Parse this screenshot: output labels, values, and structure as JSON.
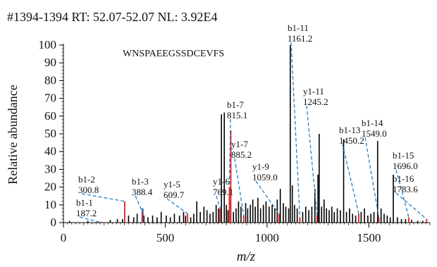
{
  "chart_data": {
    "type": "bar",
    "header": "#1394-1394 RT: 52.07-52.07 NL: 3.92E4",
    "peptide": "WNSPAEEGSSDCEVFS",
    "xlabel": "m/z",
    "ylabel": "Relative abundance",
    "xlim": [
      0,
      1800
    ],
    "ylim": [
      0,
      100
    ],
    "xticks": [
      0,
      500,
      1000,
      1500
    ],
    "yticks": [
      0,
      10,
      20,
      30,
      40,
      50,
      60,
      70,
      80,
      90,
      100
    ],
    "grid": false,
    "colors": {
      "matched": "#e02020",
      "unmatched": "#000000",
      "annotation": "#2a7fc4",
      "shoulder": "#2a7fc4"
    },
    "labels": [
      {
        "ion": "b1-1",
        "mz": "187.2",
        "x": 187.2,
        "y": 0
      },
      {
        "ion": "b1-2",
        "mz": "300.8",
        "x": 300.8,
        "y": 12
      },
      {
        "ion": "b1-3",
        "mz": "388.4",
        "x": 388.4,
        "y": 6
      },
      {
        "ion": "y1-5",
        "mz": "609.7",
        "x": 609.7,
        "y": 5
      },
      {
        "ion": "y1-6",
        "mz": "769.1",
        "x": 769.1,
        "y": 8
      },
      {
        "ion": "b1-7",
        "mz": "815.1",
        "x": 815.1,
        "y": 20
      },
      {
        "ion": "y1-7",
        "mz": "885.2",
        "x": 885.2,
        "y": 4
      },
      {
        "ion": "y1-9",
        "mz": "1059.0",
        "x": 1059.0,
        "y": 5
      },
      {
        "ion": "b1-11",
        "mz": "1161.2",
        "x": 1161.2,
        "y": 3
      },
      {
        "ion": "y1-11",
        "mz": "1245.2",
        "x": 1245.2,
        "y": 4
      },
      {
        "ion": "b1-13",
        "mz": "1450.2",
        "x": 1450.2,
        "y": 5
      },
      {
        "ion": "b1-14",
        "mz": "1549.0",
        "x": 1549.0,
        "y": 3
      },
      {
        "ion": "b1-15",
        "mz": "1696.0",
        "x": 1696.0,
        "y": 3
      },
      {
        "ion": "b1-16",
        "mz": "1783.6",
        "x": 1783.6,
        "y": 2
      }
    ],
    "peaks_matched": [
      {
        "x": 187.2,
        "y": 0.5
      },
      {
        "x": 300.8,
        "y": 12
      },
      {
        "x": 388.4,
        "y": 6
      },
      {
        "x": 609.7,
        "y": 5
      },
      {
        "x": 769.1,
        "y": 8
      },
      {
        "x": 815.1,
        "y": 20
      },
      {
        "x": 822,
        "y": 52
      },
      {
        "x": 885.2,
        "y": 4
      },
      {
        "x": 1059.0,
        "y": 5
      },
      {
        "x": 1161.2,
        "y": 3
      },
      {
        "x": 1245.2,
        "y": 4
      },
      {
        "x": 1450.2,
        "y": 5
      },
      {
        "x": 1549.0,
        "y": 3
      },
      {
        "x": 1696.0,
        "y": 3
      },
      {
        "x": 1783.6,
        "y": 2
      }
    ],
    "peaks_unmatched": [
      {
        "x": 30,
        "y": 1
      },
      {
        "x": 120,
        "y": 1
      },
      {
        "x": 230,
        "y": 1.5
      },
      {
        "x": 265,
        "y": 2
      },
      {
        "x": 290,
        "y": 2
      },
      {
        "x": 320,
        "y": 4
      },
      {
        "x": 345,
        "y": 3
      },
      {
        "x": 362,
        "y": 5
      },
      {
        "x": 395,
        "y": 4
      },
      {
        "x": 415,
        "y": 3
      },
      {
        "x": 438,
        "y": 4
      },
      {
        "x": 460,
        "y": 3
      },
      {
        "x": 480,
        "y": 6
      },
      {
        "x": 505,
        "y": 4
      },
      {
        "x": 525,
        "y": 3
      },
      {
        "x": 545,
        "y": 5
      },
      {
        "x": 570,
        "y": 4
      },
      {
        "x": 590,
        "y": 6
      },
      {
        "x": 600,
        "y": 4
      },
      {
        "x": 625,
        "y": 3
      },
      {
        "x": 640,
        "y": 5
      },
      {
        "x": 655,
        "y": 12
      },
      {
        "x": 672,
        "y": 6
      },
      {
        "x": 690,
        "y": 9
      },
      {
        "x": 705,
        "y": 7
      },
      {
        "x": 720,
        "y": 5
      },
      {
        "x": 735,
        "y": 6
      },
      {
        "x": 750,
        "y": 10
      },
      {
        "x": 762,
        "y": 8
      },
      {
        "x": 776,
        "y": 61
      },
      {
        "x": 790,
        "y": 62
      },
      {
        "x": 800,
        "y": 10
      },
      {
        "x": 808,
        "y": 7
      },
      {
        "x": 835,
        "y": 6
      },
      {
        "x": 848,
        "y": 8
      },
      {
        "x": 860,
        "y": 12
      },
      {
        "x": 872,
        "y": 9
      },
      {
        "x": 895,
        "y": 11
      },
      {
        "x": 905,
        "y": 8
      },
      {
        "x": 918,
        "y": 10
      },
      {
        "x": 930,
        "y": 13
      },
      {
        "x": 942,
        "y": 9
      },
      {
        "x": 955,
        "y": 14
      },
      {
        "x": 968,
        "y": 8
      },
      {
        "x": 982,
        "y": 10
      },
      {
        "x": 995,
        "y": 12
      },
      {
        "x": 1010,
        "y": 9
      },
      {
        "x": 1025,
        "y": 10
      },
      {
        "x": 1038,
        "y": 8
      },
      {
        "x": 1050,
        "y": 13
      },
      {
        "x": 1065,
        "y": 19
      },
      {
        "x": 1080,
        "y": 11
      },
      {
        "x": 1092,
        "y": 9
      },
      {
        "x": 1106,
        "y": 8
      },
      {
        "x": 1114,
        "y": 100
      },
      {
        "x": 1124,
        "y": 21
      },
      {
        "x": 1135,
        "y": 10
      },
      {
        "x": 1148,
        "y": 8
      },
      {
        "x": 1175,
        "y": 6
      },
      {
        "x": 1190,
        "y": 9
      },
      {
        "x": 1205,
        "y": 7
      },
      {
        "x": 1220,
        "y": 9
      },
      {
        "x": 1235,
        "y": 19
      },
      {
        "x": 1250,
        "y": 27
      },
      {
        "x": 1256,
        "y": 50
      },
      {
        "x": 1268,
        "y": 9
      },
      {
        "x": 1280,
        "y": 13
      },
      {
        "x": 1292,
        "y": 8
      },
      {
        "x": 1305,
        "y": 7
      },
      {
        "x": 1318,
        "y": 9
      },
      {
        "x": 1330,
        "y": 6
      },
      {
        "x": 1345,
        "y": 8
      },
      {
        "x": 1360,
        "y": 7
      },
      {
        "x": 1376,
        "y": 47
      },
      {
        "x": 1390,
        "y": 6
      },
      {
        "x": 1405,
        "y": 8
      },
      {
        "x": 1420,
        "y": 5
      },
      {
        "x": 1435,
        "y": 4
      },
      {
        "x": 1462,
        "y": 6
      },
      {
        "x": 1478,
        "y": 8
      },
      {
        "x": 1495,
        "y": 4
      },
      {
        "x": 1510,
        "y": 5
      },
      {
        "x": 1525,
        "y": 6
      },
      {
        "x": 1543,
        "y": 46
      },
      {
        "x": 1560,
        "y": 8
      },
      {
        "x": 1575,
        "y": 5
      },
      {
        "x": 1590,
        "y": 4
      },
      {
        "x": 1605,
        "y": 3
      },
      {
        "x": 1620,
        "y": 27
      },
      {
        "x": 1640,
        "y": 3
      },
      {
        "x": 1660,
        "y": 2
      },
      {
        "x": 1680,
        "y": 2
      },
      {
        "x": 1710,
        "y": 1.5
      },
      {
        "x": 1740,
        "y": 1
      },
      {
        "x": 1765,
        "y": 1
      }
    ],
    "peaks_shoulder": [
      {
        "x": 386,
        "y": 8
      },
      {
        "x": 391,
        "y": 8
      }
    ]
  }
}
